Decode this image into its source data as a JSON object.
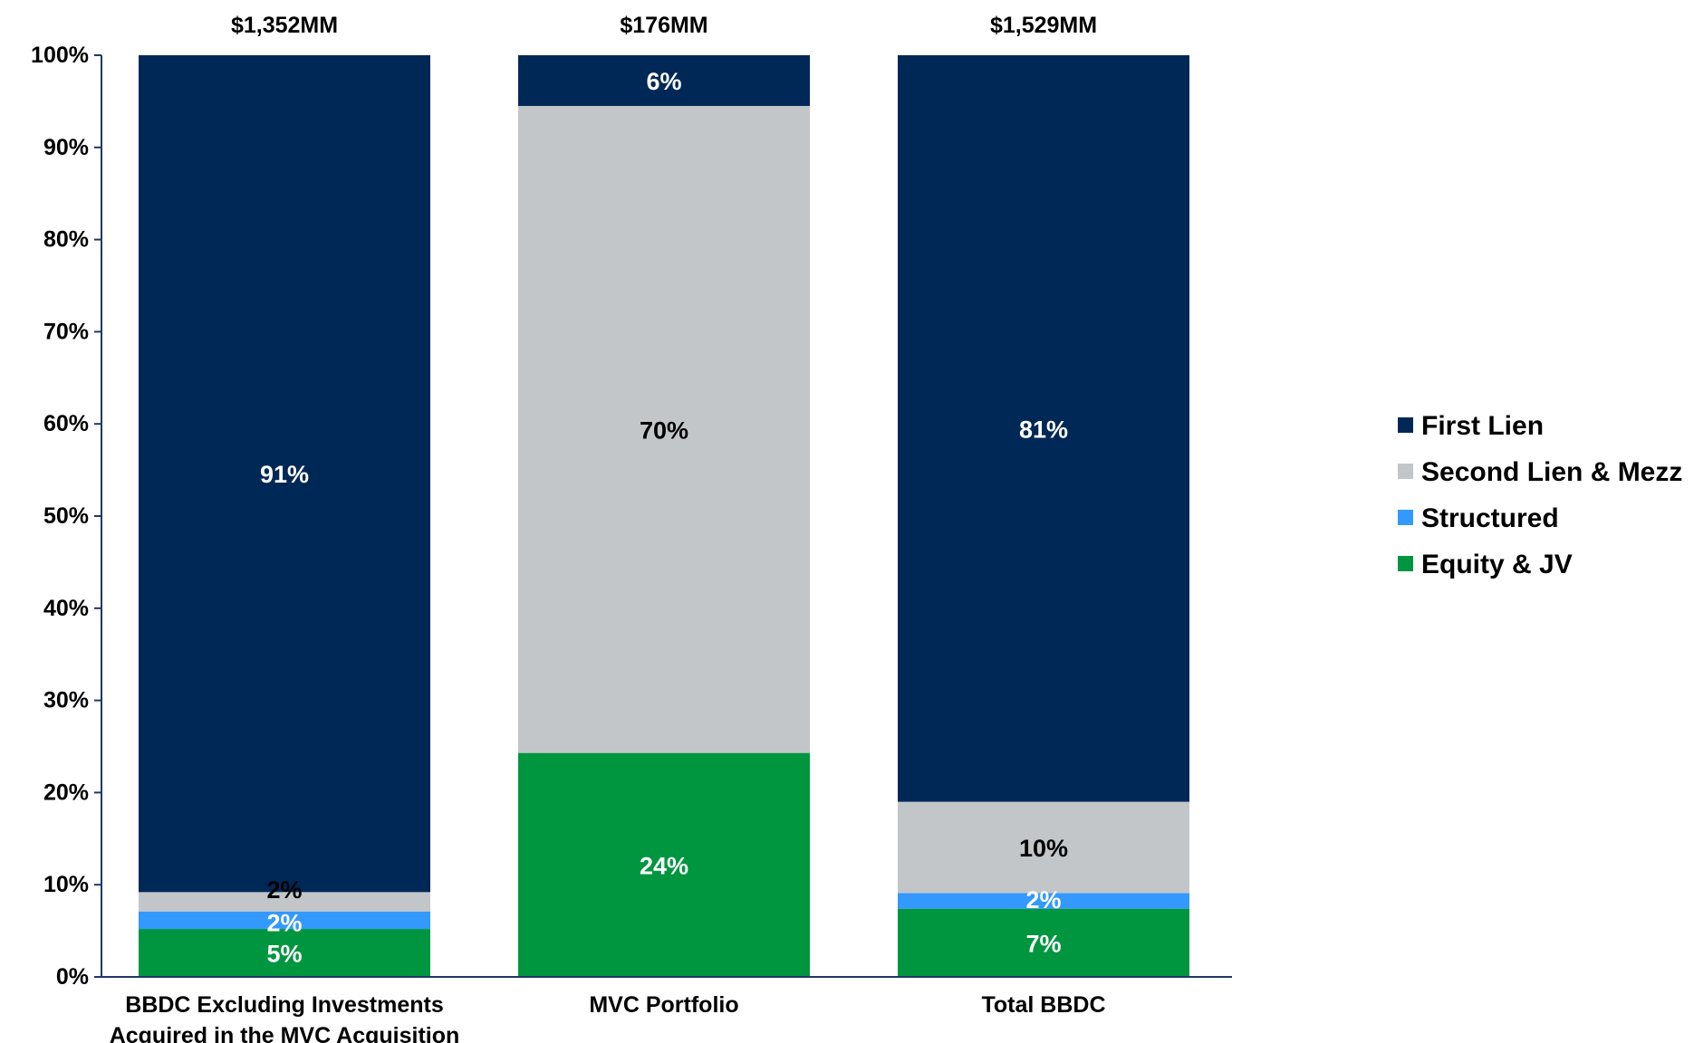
{
  "chart_data": {
    "type": "bar",
    "stacked": true,
    "percent_stacked": true,
    "title": "",
    "xlabel": "",
    "ylabel": "",
    "ylim": [
      0,
      100
    ],
    "yticks": [
      "0%",
      "10%",
      "20%",
      "30%",
      "40%",
      "50%",
      "60%",
      "70%",
      "80%",
      "90%",
      "100%"
    ],
    "categories": [
      [
        "BBDC Excluding Investments",
        "Acquired in the MVC Acquisition"
      ],
      [
        "MVC Portfolio"
      ],
      [
        "Total BBDC"
      ]
    ],
    "totals": [
      "$1,352MM",
      "$176MM",
      "$1,529MM"
    ],
    "series": [
      {
        "name": "Equity & JV",
        "color": "#00963F",
        "values": [
          5.2,
          24.3,
          7.4
        ],
        "labels": [
          "5%",
          "24%",
          "7%"
        ],
        "label_color": "#ffffff"
      },
      {
        "name": "Structured",
        "color": "#3399FF",
        "values": [
          1.9,
          0,
          1.7
        ],
        "labels": [
          "2%",
          "",
          "2%"
        ],
        "label_color": "#ffffff"
      },
      {
        "name": "Second Lien & Mezz",
        "color": "#C3C6C9",
        "values": [
          2.1,
          70.2,
          9.9
        ],
        "labels": [
          "2%",
          "70%",
          "10%"
        ],
        "label_color": "#000000"
      },
      {
        "name": "First Lien",
        "color": "#002856",
        "values": [
          90.8,
          5.5,
          81.0
        ],
        "labels": [
          "91%",
          "6%",
          "81%"
        ],
        "label_color": "#ffffff"
      }
    ],
    "legend_position": "right",
    "legend_order": [
      "First Lien",
      "Second Lien & Mezz",
      "Structured",
      "Equity & JV"
    ],
    "grid": false
  }
}
